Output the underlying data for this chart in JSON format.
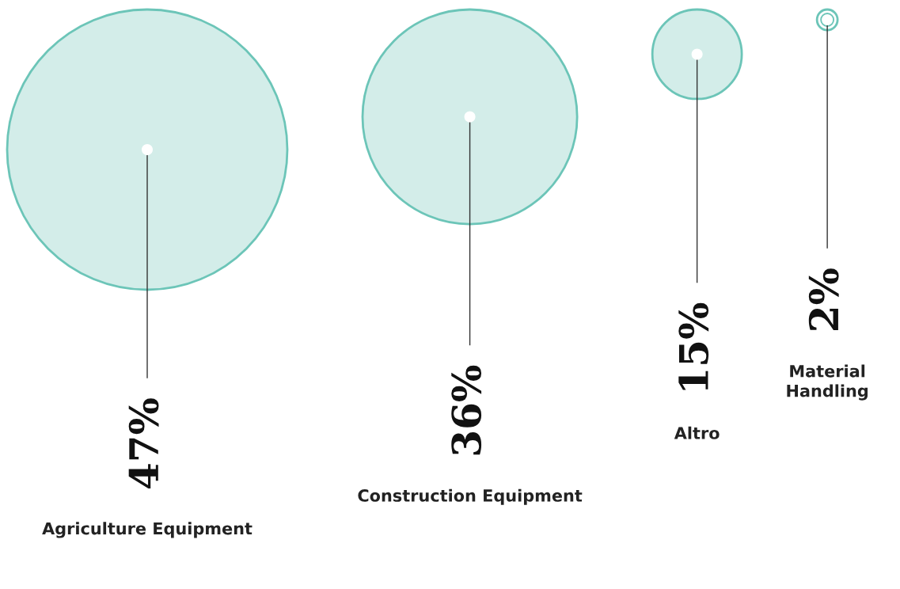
{
  "chart_data": {
    "type": "other",
    "categories": [
      "Agriculture Equipment",
      "Construction Equipment",
      "Altro",
      "Material Handling"
    ],
    "values": [
      47,
      36,
      15,
      2
    ],
    "value_labels": [
      "47%",
      "36%",
      "15%",
      "2%"
    ],
    "color": "#6cc5b8"
  }
}
